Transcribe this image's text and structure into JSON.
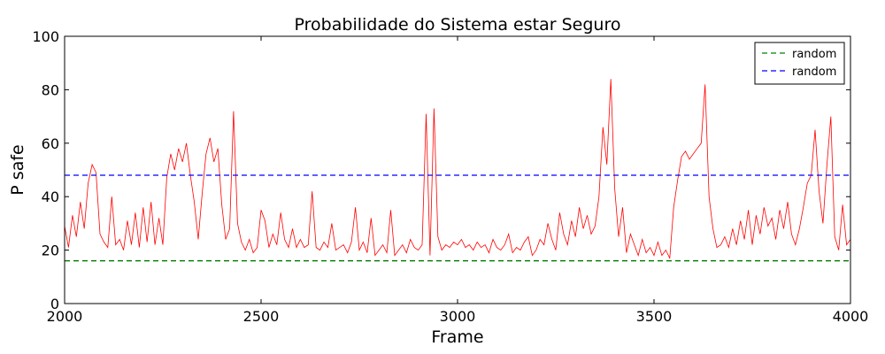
{
  "chart_data": {
    "type": "line",
    "title": "Probabilidade do Sistema estar Seguro",
    "xlabel": "Frame",
    "ylabel": "P safe",
    "xlim": [
      2000,
      4000
    ],
    "ylim": [
      0,
      100
    ],
    "xticks": [
      2000,
      2500,
      3000,
      3500,
      4000
    ],
    "yticks": [
      0,
      20,
      40,
      60,
      80,
      100
    ],
    "grid": false,
    "legend_position": "top-right",
    "series": [
      {
        "color": "#ff0000",
        "style": "solid",
        "x": [
          2000,
          2010,
          2020,
          2030,
          2040,
          2050,
          2060,
          2070,
          2080,
          2090,
          2100,
          2110,
          2120,
          2130,
          2140,
          2150,
          2160,
          2170,
          2180,
          2190,
          2200,
          2210,
          2220,
          2230,
          2240,
          2250,
          2260,
          2270,
          2280,
          2290,
          2300,
          2310,
          2320,
          2330,
          2340,
          2350,
          2360,
          2370,
          2380,
          2390,
          2400,
          2410,
          2420,
          2430,
          2440,
          2450,
          2460,
          2470,
          2480,
          2490,
          2500,
          2510,
          2520,
          2530,
          2540,
          2550,
          2560,
          2570,
          2580,
          2590,
          2600,
          2610,
          2620,
          2630,
          2640,
          2650,
          2660,
          2670,
          2680,
          2690,
          2700,
          2710,
          2720,
          2730,
          2740,
          2750,
          2760,
          2770,
          2780,
          2790,
          2800,
          2810,
          2820,
          2830,
          2840,
          2850,
          2860,
          2870,
          2880,
          2890,
          2900,
          2910,
          2920,
          2930,
          2940,
          2950,
          2960,
          2970,
          2980,
          2990,
          3000,
          3010,
          3020,
          3030,
          3040,
          3050,
          3060,
          3070,
          3080,
          3090,
          3100,
          3110,
          3120,
          3130,
          3140,
          3150,
          3160,
          3170,
          3180,
          3190,
          3200,
          3210,
          3220,
          3230,
          3240,
          3250,
          3260,
          3270,
          3280,
          3290,
          3300,
          3310,
          3320,
          3330,
          3340,
          3350,
          3360,
          3370,
          3380,
          3390,
          3400,
          3410,
          3420,
          3430,
          3440,
          3450,
          3460,
          3470,
          3480,
          3490,
          3500,
          3510,
          3520,
          3530,
          3540,
          3550,
          3560,
          3570,
          3580,
          3590,
          3600,
          3610,
          3620,
          3630,
          3640,
          3650,
          3660,
          3670,
          3680,
          3690,
          3700,
          3710,
          3720,
          3730,
          3740,
          3750,
          3760,
          3770,
          3780,
          3790,
          3800,
          3810,
          3820,
          3830,
          3840,
          3850,
          3860,
          3870,
          3880,
          3890,
          3900,
          3910,
          3920,
          3930,
          3940,
          3950,
          3960,
          3970,
          3980,
          3990,
          4000
        ],
        "y": [
          29,
          21,
          33,
          25,
          38,
          28,
          45,
          52,
          49,
          26,
          23,
          21,
          40,
          22,
          24,
          20,
          31,
          22,
          34,
          21,
          36,
          23,
          38,
          22,
          32,
          22,
          47,
          56,
          50,
          58,
          53,
          60,
          48,
          38,
          24,
          41,
          56,
          62,
          53,
          58,
          37,
          24,
          28,
          72,
          30,
          23,
          20,
          24,
          19,
          21,
          35,
          31,
          21,
          26,
          22,
          34,
          24,
          21,
          28,
          21,
          24,
          21,
          22,
          42,
          21,
          20,
          23,
          21,
          30,
          20,
          21,
          22,
          19,
          23,
          36,
          20,
          23,
          19,
          32,
          18,
          20,
          22,
          19,
          35,
          18,
          20,
          22,
          19,
          24,
          21,
          20,
          22,
          71,
          18,
          73,
          25,
          20,
          22,
          21,
          23,
          22,
          24,
          21,
          22,
          20,
          23,
          21,
          22,
          19,
          24,
          21,
          20,
          22,
          26,
          19,
          21,
          20,
          23,
          25,
          18,
          20,
          24,
          22,
          30,
          24,
          20,
          34,
          26,
          22,
          31,
          25,
          36,
          28,
          33,
          26,
          29,
          40,
          66,
          52,
          84,
          43,
          25,
          36,
          19,
          26,
          22,
          18,
          24,
          19,
          21,
          18,
          23,
          18,
          20,
          17,
          36,
          46,
          55,
          57,
          54,
          56,
          58,
          60,
          82,
          40,
          28,
          21,
          22,
          25,
          21,
          28,
          22,
          31,
          24,
          35,
          22,
          33,
          26,
          36,
          29,
          32,
          24,
          35,
          28,
          38,
          26,
          22,
          28,
          36,
          45,
          48,
          65,
          42,
          30,
          52,
          70,
          25,
          20,
          37,
          22,
          24
        ]
      },
      {
        "name": "random",
        "color": "#008000",
        "style": "dashed",
        "x": [
          2000,
          4000
        ],
        "y": [
          16,
          16
        ]
      },
      {
        "name": "random",
        "color": "#0000ff",
        "style": "dashed",
        "x": [
          2000,
          4000
        ],
        "y": [
          48,
          48
        ]
      }
    ]
  }
}
